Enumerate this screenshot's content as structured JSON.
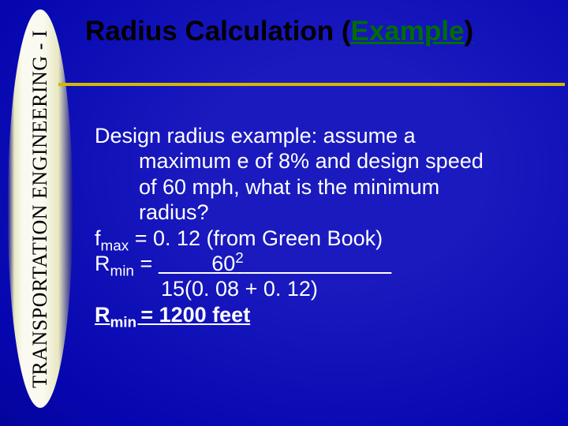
{
  "sidebar": {
    "label": "TRANSPORTATION ENGINEERING - I"
  },
  "title": {
    "word1": "Radius",
    "word2": "Calculation",
    "paren_open": "(",
    "word3": "Example",
    "paren_close": ")"
  },
  "body": {
    "line1": "Design radius example:  assume a",
    "line2": "maximum e of 8% and design speed",
    "line3": "of 60 mph, what is the minimum",
    "line4": "radius?",
    "fmax_pre": "f",
    "fmax_sub": "max",
    "fmax_rest": " = 0. 12 (from Green Book)",
    "rmin_pre": "R",
    "rmin_sub": "min",
    "rmin_eq": " = ",
    "num_base": "60",
    "num_sup": "2",
    "denom": "15(0. 08 + 0. 12)",
    "ans_pre": "R",
    "ans_sub": "min ",
    "ans_rest": "= 1200 feet"
  },
  "style": {
    "bg_center": "#1a1abf",
    "bg_edge": "#00005c",
    "hr_color": "#d4b800",
    "example_color": "#006e00",
    "text_color": "#ffffff",
    "title_color": "#000000",
    "sidebar_light": "#fafaf0",
    "title_fontsize": 35,
    "body_fontsize": 27,
    "sidebar_fontsize": 26
  }
}
